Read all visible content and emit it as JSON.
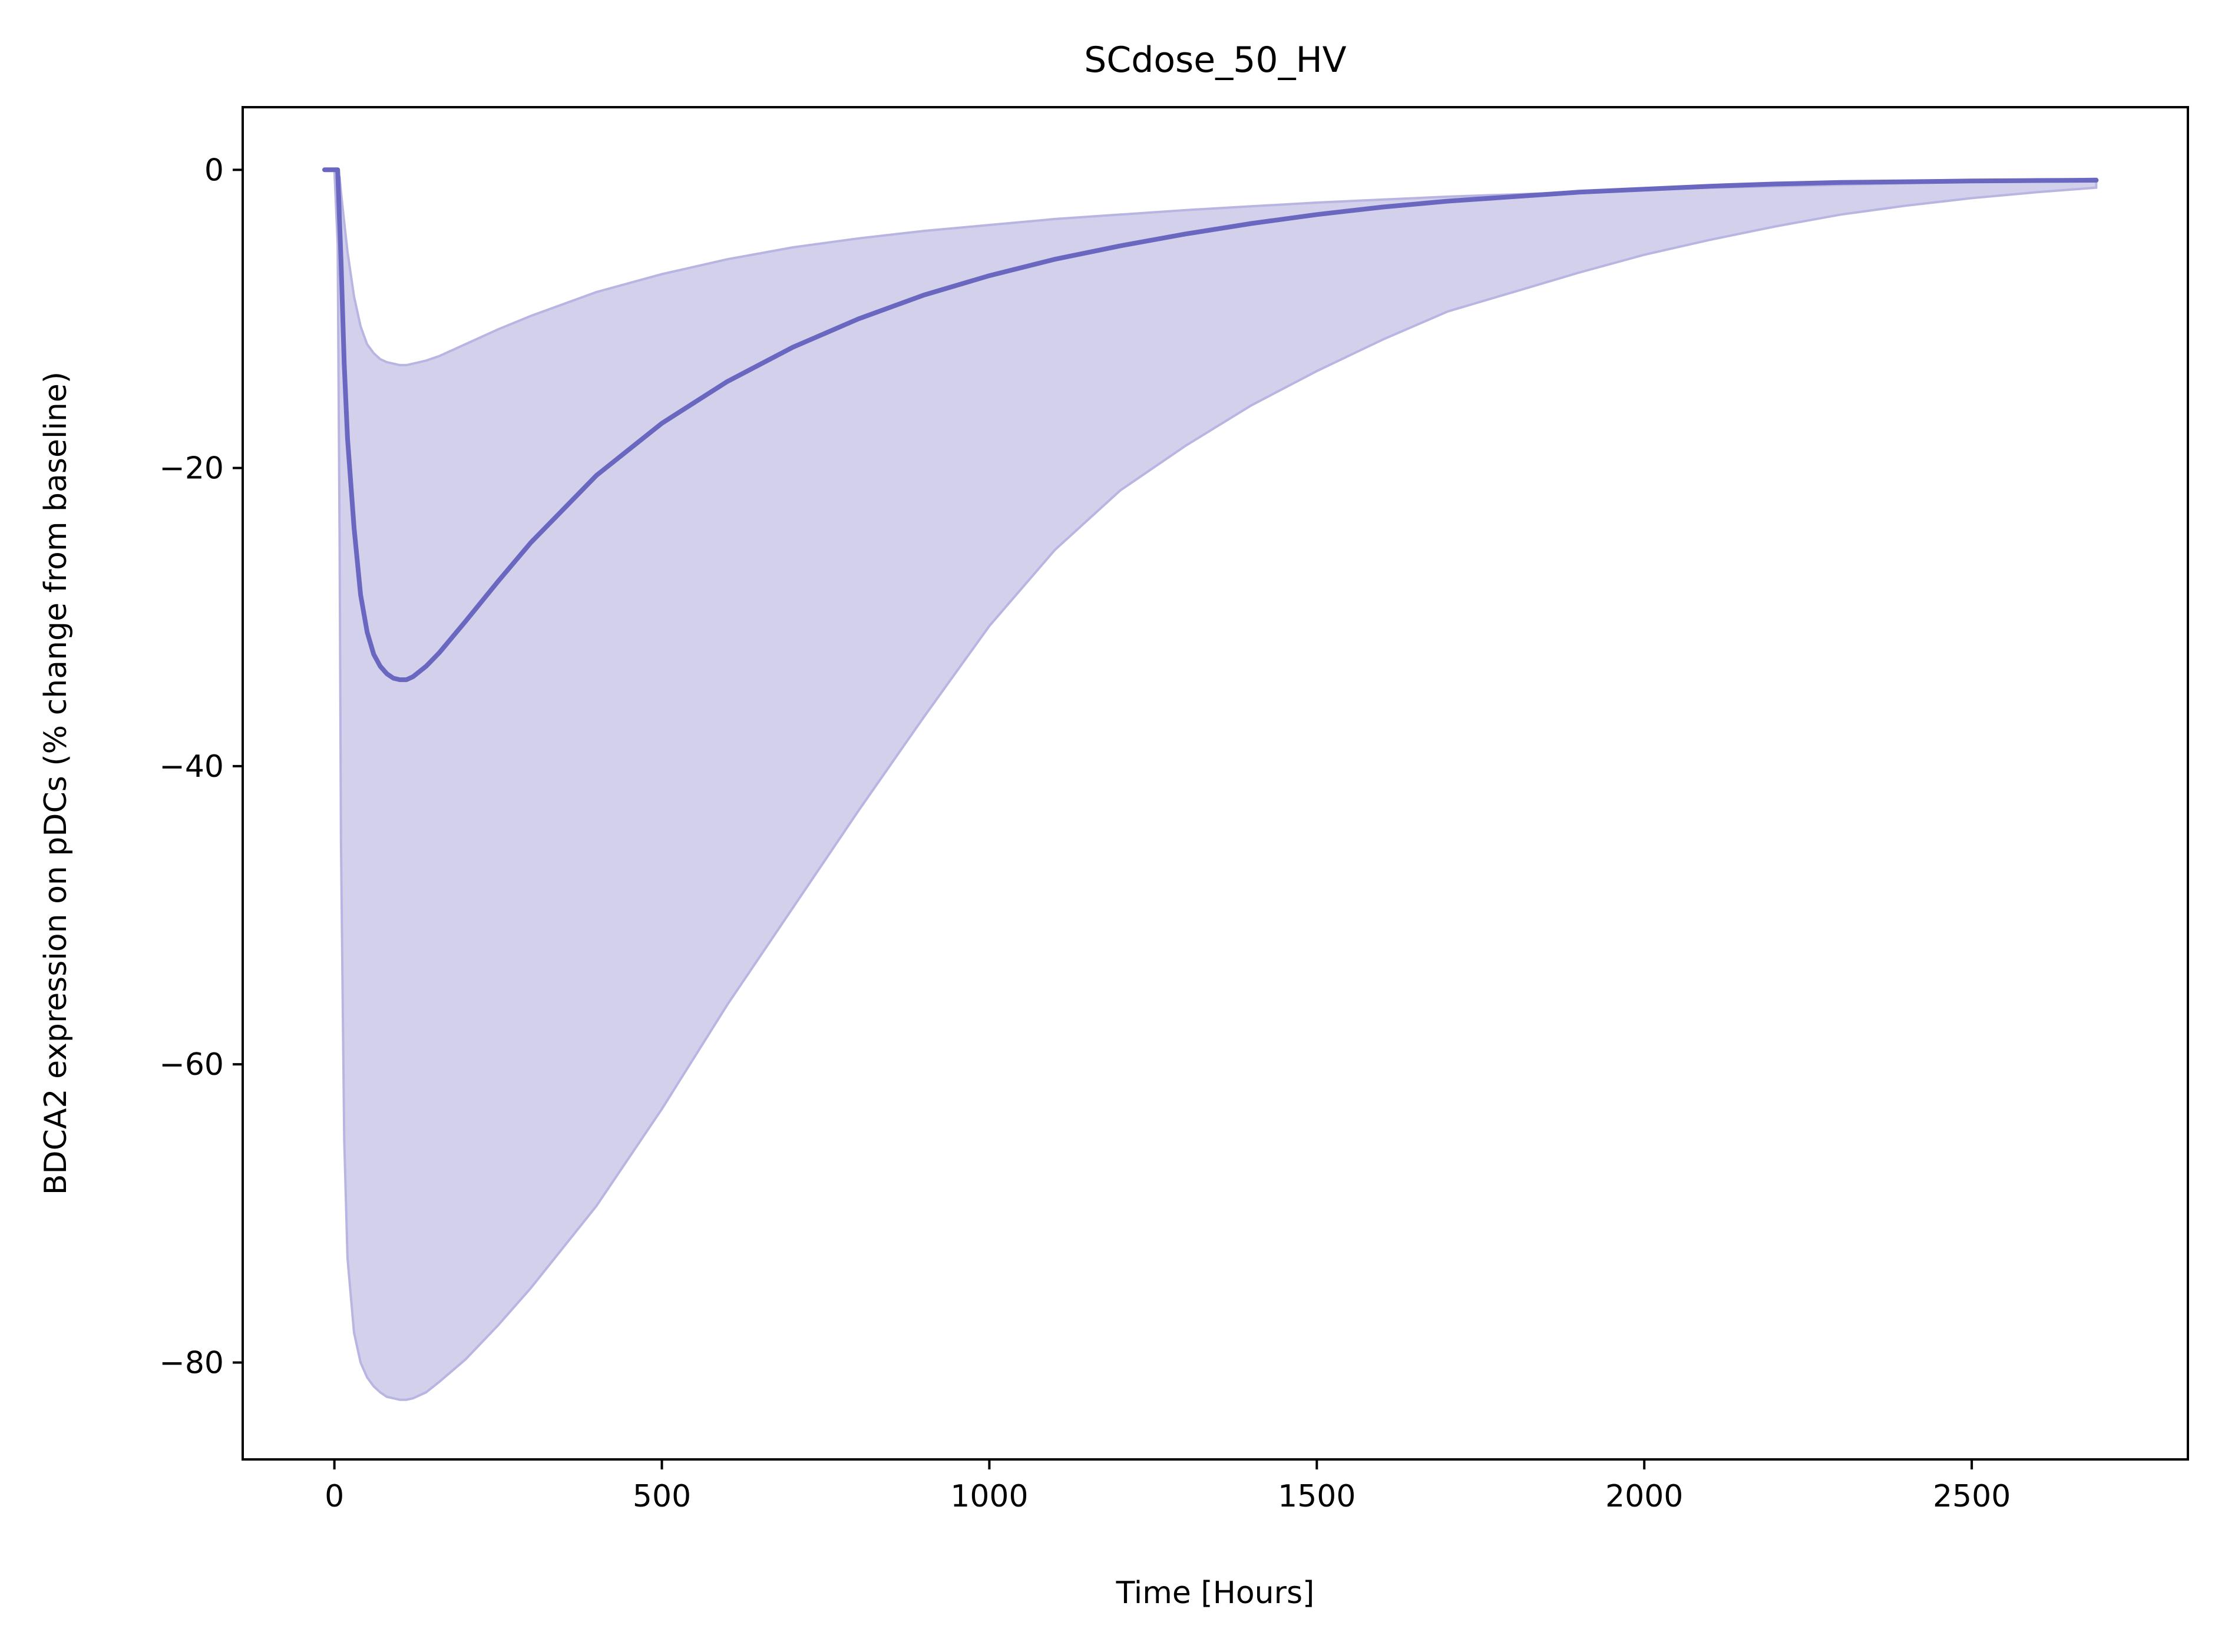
{
  "chart_data": {
    "type": "line",
    "title": "SCdose_50_HV",
    "xlabel": "Time [Hours]",
    "ylabel": "BDCA2 expression on pDCs (% change from baseline)",
    "xlim": [
      -140,
      2830
    ],
    "ylim": [
      -86.5,
      4.2
    ],
    "xticks": [
      0,
      500,
      1000,
      1500,
      2000,
      2500
    ],
    "yticks": [
      0,
      -20,
      -40,
      -60,
      -80
    ],
    "xtick_labels": [
      "0",
      "500",
      "1000",
      "1500",
      "2000",
      "2500"
    ],
    "ytick_labels": [
      "0",
      "−20",
      "−40",
      "−60",
      "−80"
    ],
    "grid": false,
    "colors": {
      "line": "#6a67c0",
      "band": "#d3d0ec",
      "band_edge": "#b9b5e2"
    },
    "series": [
      {
        "x": [
          -15,
          0,
          5,
          10,
          15,
          20,
          30,
          40,
          50,
          60,
          70,
          80,
          90,
          100,
          110,
          120,
          140,
          160,
          200,
          250,
          300,
          400,
          500,
          600,
          700,
          800,
          900,
          1000,
          1100,
          1200,
          1300,
          1400,
          1500,
          1600,
          1700,
          1800,
          1900,
          2000,
          2100,
          2200,
          2300,
          2400,
          2500,
          2600,
          2690
        ],
        "values": [
          0,
          0,
          0,
          -6,
          -13,
          -18,
          -24,
          -28.5,
          -31,
          -32.5,
          -33.3,
          -33.8,
          -34.1,
          -34.2,
          -34.2,
          -34.0,
          -33.3,
          -32.4,
          -30.3,
          -27.6,
          -25.0,
          -20.5,
          -17.0,
          -14.2,
          -11.9,
          -10.0,
          -8.4,
          -7.1,
          -6.0,
          -5.1,
          -4.3,
          -3.6,
          -3.0,
          -2.5,
          -2.1,
          -1.8,
          -1.5,
          -1.3,
          -1.1,
          -0.95,
          -0.85,
          -0.8,
          -0.75,
          -0.72,
          -0.7
        ]
      }
    ],
    "band": {
      "x": [
        -15,
        0,
        5,
        8,
        10,
        15,
        20,
        30,
        40,
        50,
        60,
        70,
        80,
        90,
        100,
        110,
        120,
        140,
        160,
        200,
        250,
        300,
        400,
        500,
        600,
        700,
        800,
        900,
        1000,
        1100,
        1200,
        1300,
        1400,
        1500,
        1600,
        1700,
        1800,
        1900,
        2000,
        2100,
        2200,
        2300,
        2400,
        2500,
        2600,
        2690
      ],
      "upper": [
        0,
        0,
        0,
        -0.5,
        -1.5,
        -3.5,
        -5.5,
        -8.5,
        -10.5,
        -11.7,
        -12.3,
        -12.7,
        -12.9,
        -13.0,
        -13.1,
        -13.1,
        -13.0,
        -12.8,
        -12.5,
        -11.7,
        -10.7,
        -9.8,
        -8.2,
        -7.0,
        -6.0,
        -5.2,
        -4.6,
        -4.1,
        -3.7,
        -3.3,
        -3.0,
        -2.7,
        -2.45,
        -2.2,
        -2.0,
        -1.8,
        -1.65,
        -1.5,
        -1.35,
        -1.2,
        -1.1,
        -1.0,
        -0.9,
        -0.8,
        -0.7,
        -0.6
      ],
      "lower": [
        0,
        0,
        -5,
        -25,
        -45,
        -65,
        -73,
        -78,
        -80,
        -81,
        -81.6,
        -82,
        -82.3,
        -82.4,
        -82.5,
        -82.5,
        -82.4,
        -82.0,
        -81.3,
        -79.8,
        -77.5,
        -75.0,
        -69.5,
        -63.0,
        -56.0,
        -49.5,
        -43.0,
        -36.7,
        -30.6,
        -25.5,
        -21.5,
        -18.5,
        -15.8,
        -13.5,
        -11.4,
        -9.5,
        -8.2,
        -6.9,
        -5.7,
        -4.7,
        -3.8,
        -3.0,
        -2.4,
        -1.9,
        -1.5,
        -1.2
      ]
    }
  }
}
